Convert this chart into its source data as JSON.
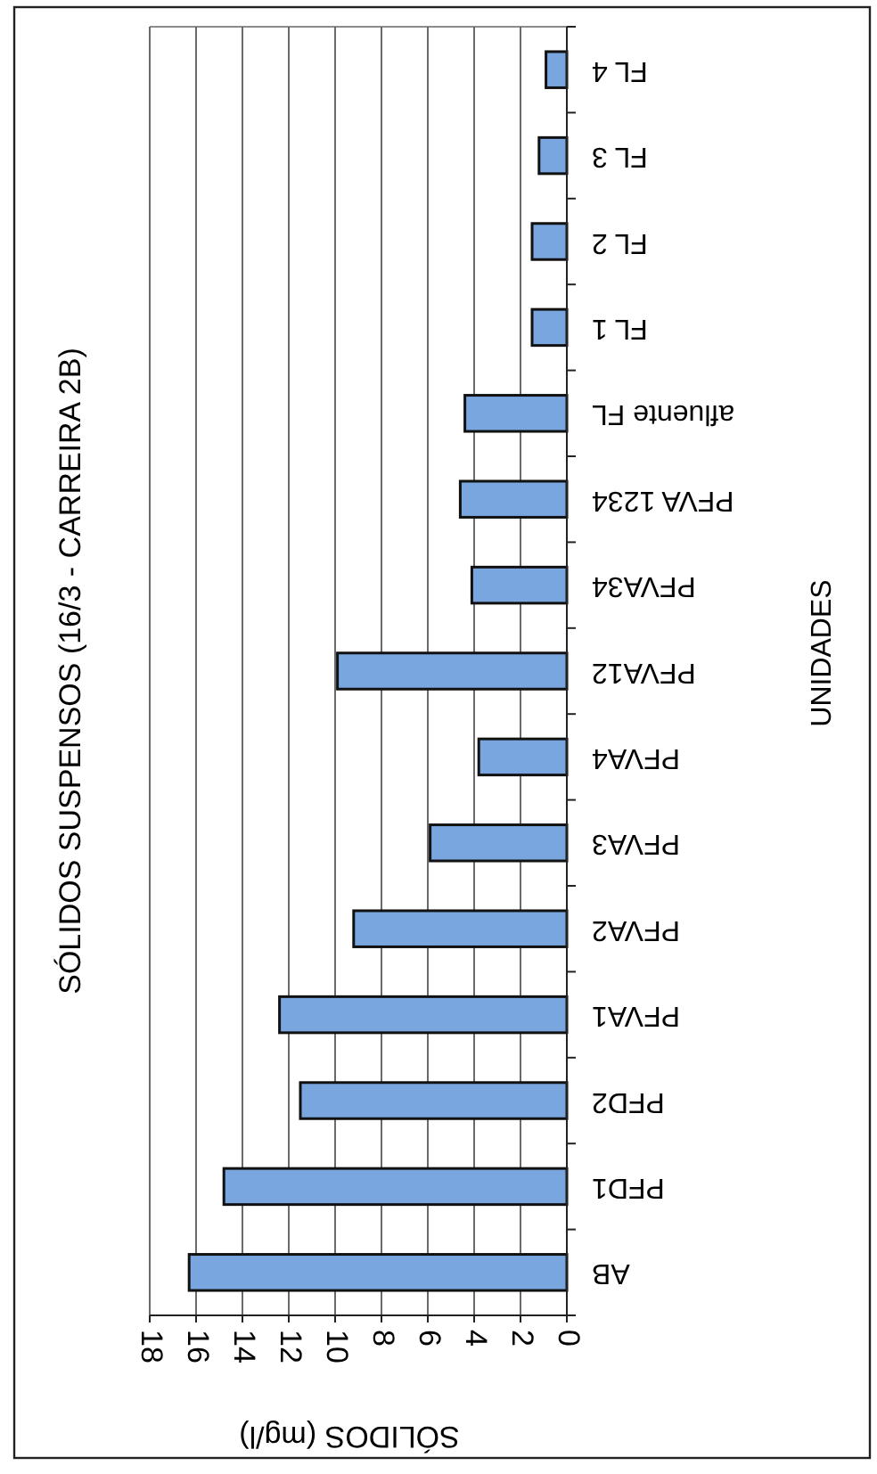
{
  "chart_data": {
    "type": "bar",
    "orientation": "horizontal",
    "title": "SÓLIDOS SUSPENSOS  (16/3 - CARREIRA 2B)",
    "xlabel": "SÓLIDOS (mg/l)",
    "ylabel": "UNIDADES",
    "categories": [
      "FL 4",
      "FL 3",
      "FL 2",
      "FL 1",
      "afluente FL",
      "PFVA 1234",
      "PFVA34",
      "PFVA12",
      "PFVA4",
      "PFVA3",
      "PFVA2",
      "PFVA1",
      "PFD2",
      "PFD1",
      "AB"
    ],
    "values": [
      0.9,
      1.2,
      1.5,
      1.5,
      4.4,
      4.6,
      4.1,
      9.9,
      3.8,
      5.9,
      9.2,
      12.4,
      11.5,
      14.8,
      16.3
    ],
    "color": "#7aa6e0",
    "xlim": [
      18,
      0
    ],
    "xticks": [
      18,
      16,
      14,
      12,
      10,
      8,
      6,
      4,
      2,
      0
    ],
    "grid": "x"
  }
}
